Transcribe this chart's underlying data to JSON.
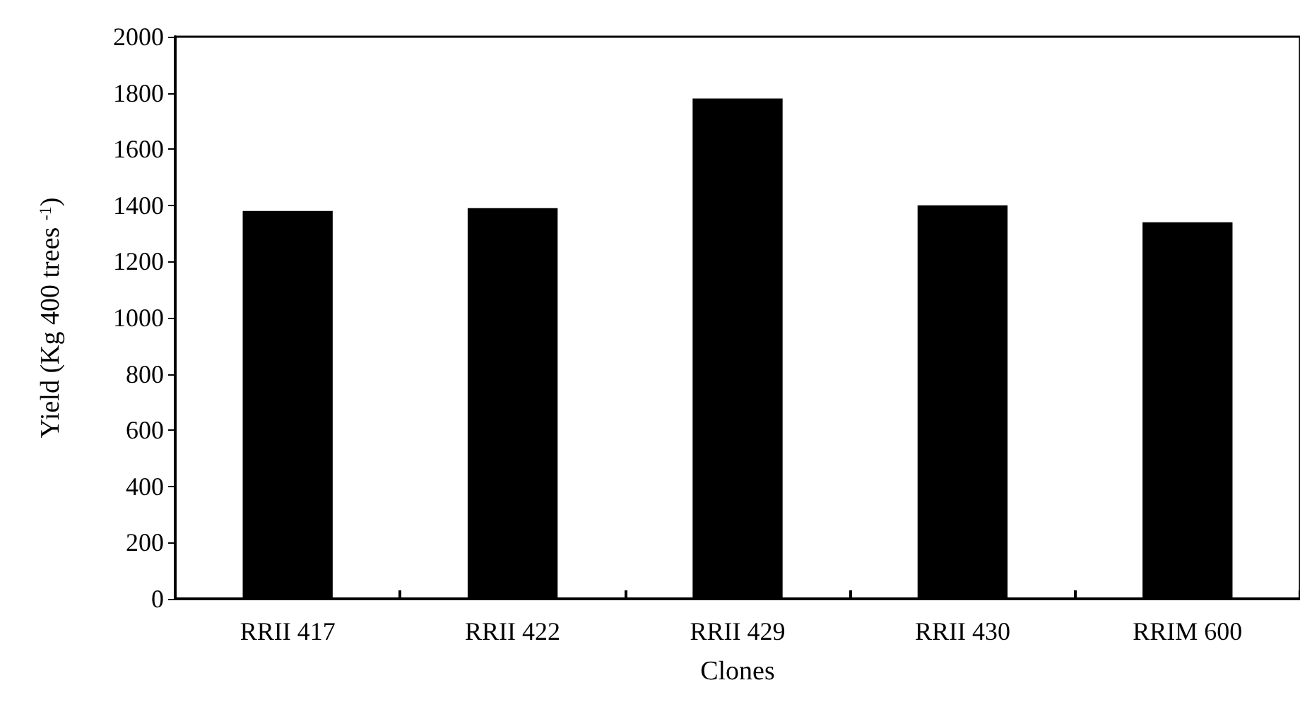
{
  "chart_data": {
    "type": "bar",
    "xlabel": "Clones",
    "ylabel": "Yield (Kg 400 trees $^{-1}$)",
    "categories": [
      "RRII 417",
      "RRII 422",
      "RRII 429",
      "RRII 430",
      "RRIM 600"
    ],
    "values": [
      1380,
      1390,
      1780,
      1400,
      1340
    ],
    "color": "#000000",
    "ylim": [
      0,
      2000
    ],
    "yticks": [
      0,
      200,
      400,
      600,
      800,
      1000,
      1200,
      1400,
      1600,
      1800,
      2000
    ],
    "grid": false
  }
}
